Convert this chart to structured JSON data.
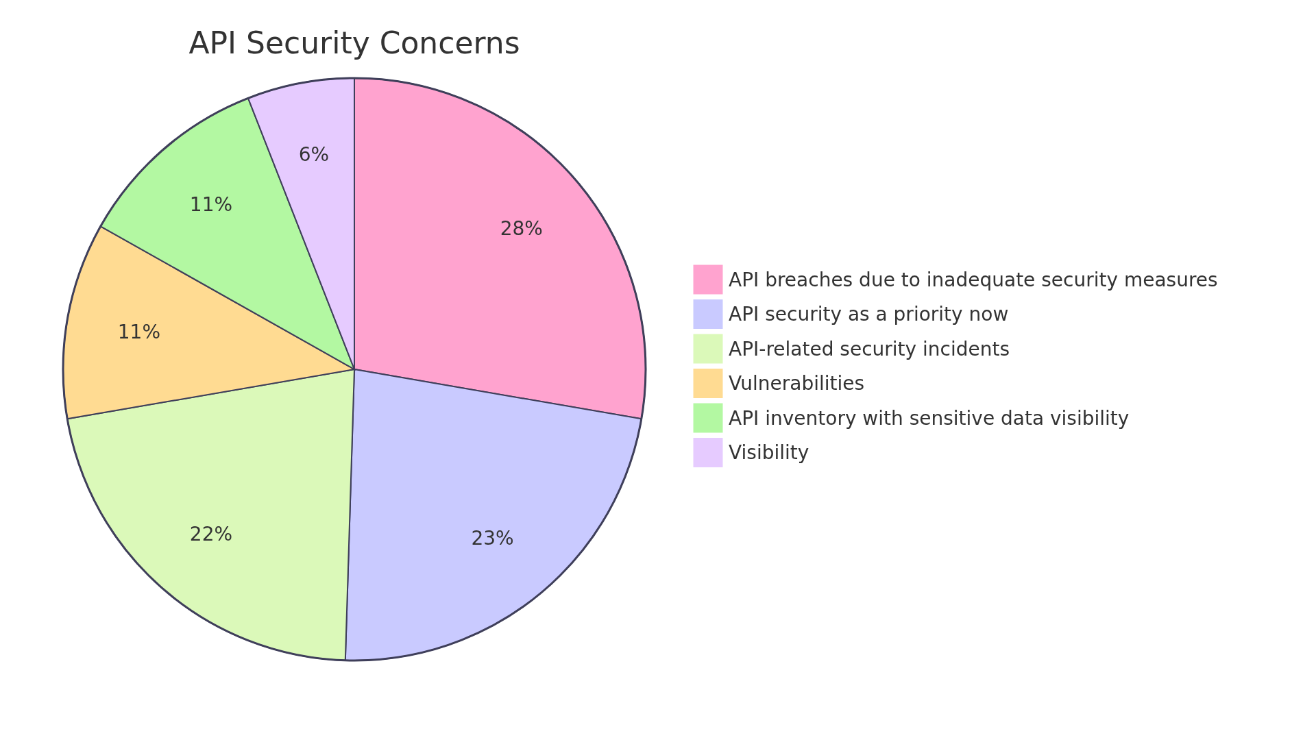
{
  "chart_data": {
    "type": "pie",
    "title": "API Security Concerns",
    "categories": [
      "API breaches due to inadequate security measures",
      "API security as a priority now",
      "API-related security incidents",
      "Vulnerabilities",
      "API inventory with sensitive data visibility",
      "Visibility"
    ],
    "values": [
      28,
      23,
      22,
      11,
      11,
      6
    ],
    "colors": [
      "#ffa3cf",
      "#c9caff",
      "#dbf9b9",
      "#ffdb92",
      "#b3f8a2",
      "#e6cbff"
    ],
    "value_labels": [
      "28%",
      "23%",
      "22%",
      "11%",
      "11%",
      "6%"
    ],
    "legend": "right"
  }
}
